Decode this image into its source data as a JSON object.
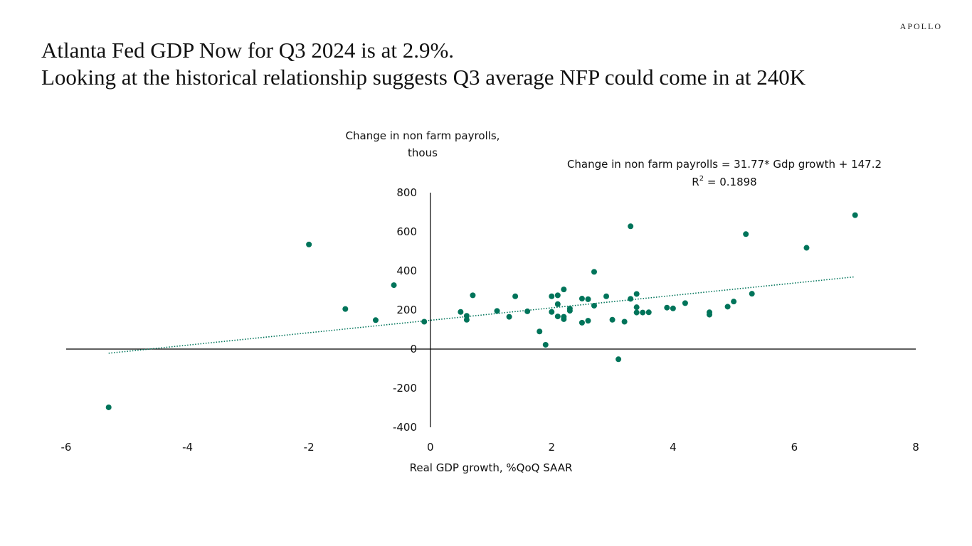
{
  "brand": "APOLLO",
  "title": {
    "line1": "Atlanta Fed GDP Now for Q3 2024 is at 2.9%.",
    "line2": "Looking at the historical relationship suggests Q3 average NFP could come in at 240K"
  },
  "colors": {
    "point": "#00745a",
    "trendline": "#00745a",
    "axis": "#000000"
  },
  "chart_data": {
    "type": "scatter",
    "title": "",
    "ylabel_line1": "Change in non farm payrolls,",
    "ylabel_line2": "thous",
    "xlabel": "Real GDP growth, %QoQ SAAR",
    "xlim": [
      -6,
      8
    ],
    "ylim": [
      -400,
      800
    ],
    "x_ticks": [
      "-6",
      "-4",
      "-2",
      "0",
      "2",
      "4",
      "6",
      "8"
    ],
    "y_ticks": [
      "800",
      "600",
      "400",
      "200",
      "0",
      "-200",
      "-400"
    ],
    "equation": "Change in non farm payrolls = 31.77* Gdp growth + 147.2",
    "r2_label": "R",
    "r2_sup": "2",
    "r2_value": " = 0.1898",
    "trendline": {
      "slope": 31.77,
      "intercept": 147.2,
      "x_from": -5.3,
      "x_to": 7.0,
      "style": "dotted"
    },
    "grid": false,
    "points": [
      [
        -5.3,
        -298
      ],
      [
        -2.0,
        535
      ],
      [
        -1.4,
        205
      ],
      [
        -0.9,
        148
      ],
      [
        -0.6,
        327
      ],
      [
        -0.1,
        140
      ],
      [
        0.5,
        190
      ],
      [
        0.6,
        170
      ],
      [
        0.6,
        150
      ],
      [
        0.7,
        275
      ],
      [
        1.1,
        195
      ],
      [
        1.3,
        165
      ],
      [
        1.4,
        270
      ],
      [
        1.6,
        193
      ],
      [
        1.8,
        90
      ],
      [
        1.9,
        22
      ],
      [
        2.0,
        270
      ],
      [
        2.0,
        190
      ],
      [
        2.1,
        275
      ],
      [
        2.1,
        230
      ],
      [
        2.1,
        167
      ],
      [
        2.2,
        305
      ],
      [
        2.2,
        165
      ],
      [
        2.2,
        153
      ],
      [
        2.3,
        207
      ],
      [
        2.3,
        196
      ],
      [
        2.5,
        258
      ],
      [
        2.5,
        135
      ],
      [
        2.6,
        255
      ],
      [
        2.6,
        145
      ],
      [
        2.7,
        395
      ],
      [
        2.7,
        222
      ],
      [
        2.9,
        270
      ],
      [
        3.0,
        150
      ],
      [
        3.1,
        -52
      ],
      [
        3.2,
        140
      ],
      [
        3.3,
        628
      ],
      [
        3.3,
        257
      ],
      [
        3.4,
        282
      ],
      [
        3.4,
        214
      ],
      [
        3.4,
        187
      ],
      [
        3.5,
        187
      ],
      [
        3.6,
        188
      ],
      [
        3.9,
        212
      ],
      [
        4.0,
        208
      ],
      [
        4.2,
        235
      ],
      [
        4.6,
        188
      ],
      [
        4.6,
        176
      ],
      [
        4.9,
        217
      ],
      [
        5.0,
        243
      ],
      [
        5.2,
        588
      ],
      [
        5.3,
        283
      ],
      [
        6.2,
        518
      ],
      [
        7.0,
        685
      ]
    ]
  }
}
